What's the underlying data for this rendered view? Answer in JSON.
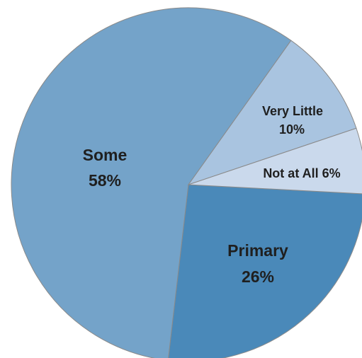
{
  "chart_data": {
    "type": "pie",
    "title": "",
    "slices": [
      {
        "label": "Primary",
        "value": 26,
        "display": "26%",
        "color": "#4a89b9"
      },
      {
        "label": "Some",
        "value": 58,
        "display": "58%",
        "color": "#74a3c9"
      },
      {
        "label": "Very Little",
        "value": 10,
        "display": "10%",
        "color": "#a9c4e0"
      },
      {
        "label": "Not at All",
        "value": 6,
        "display": "6%",
        "color": "#cad9ec"
      }
    ],
    "label_text": {
      "primary": "Primary",
      "primary_pct": "26%",
      "some": "Some",
      "some_pct": "58%",
      "very_little": "Very Little",
      "very_little_pct": "10%",
      "not_at_all": "Not at All 6%"
    },
    "legend": "none",
    "border_color": "#8a8a8a"
  }
}
